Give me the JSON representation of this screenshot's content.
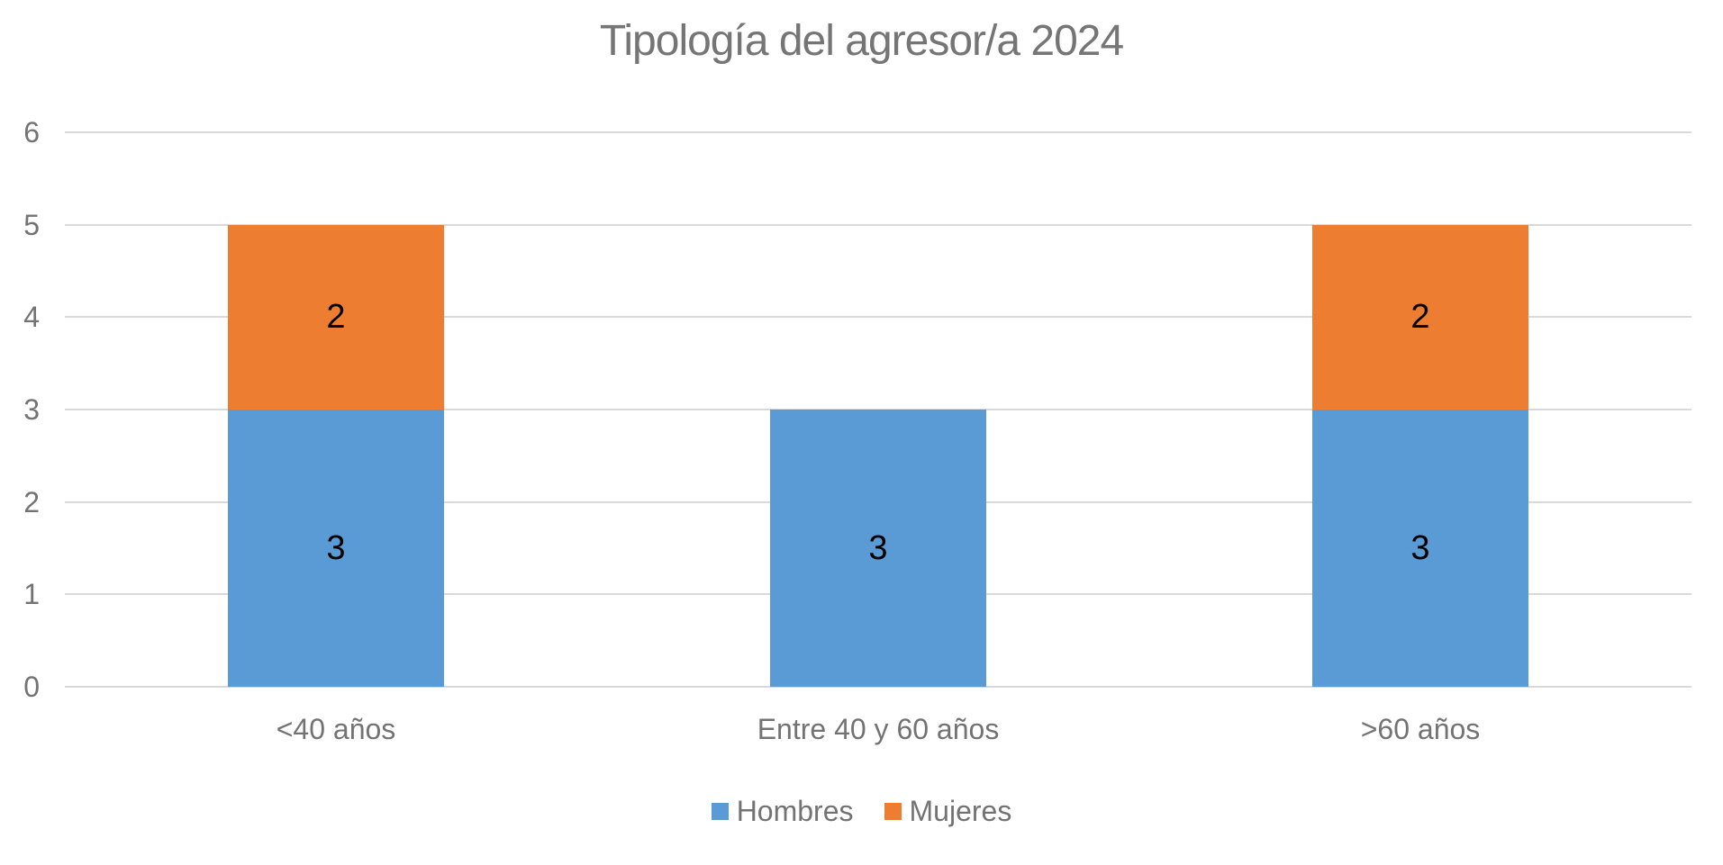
{
  "page": {
    "background": "#FFFFFF"
  },
  "chart_data": {
    "type": "bar",
    "stacked": true,
    "title": "Tipología del agresor/a 2024",
    "categories": [
      "<40 años",
      "Entre 40 y 60 años",
      ">60 años"
    ],
    "series": [
      {
        "name": "Hombres",
        "color": "#5B9BD5",
        "values": [
          3,
          3,
          3
        ]
      },
      {
        "name": "Mujeres",
        "color": "#ED7D31",
        "values": [
          2,
          0,
          2
        ]
      }
    ],
    "ylim": [
      0,
      6
    ],
    "yticks": [
      0,
      1,
      2,
      3,
      4,
      5,
      6
    ],
    "grid": true,
    "gridline_color": "#D9D9D9",
    "title_color": "#757575",
    "axis_label_color": "#737373",
    "data_label_color": "#000000",
    "legend_position": "bottom",
    "xlabel": "",
    "ylabel": ""
  }
}
